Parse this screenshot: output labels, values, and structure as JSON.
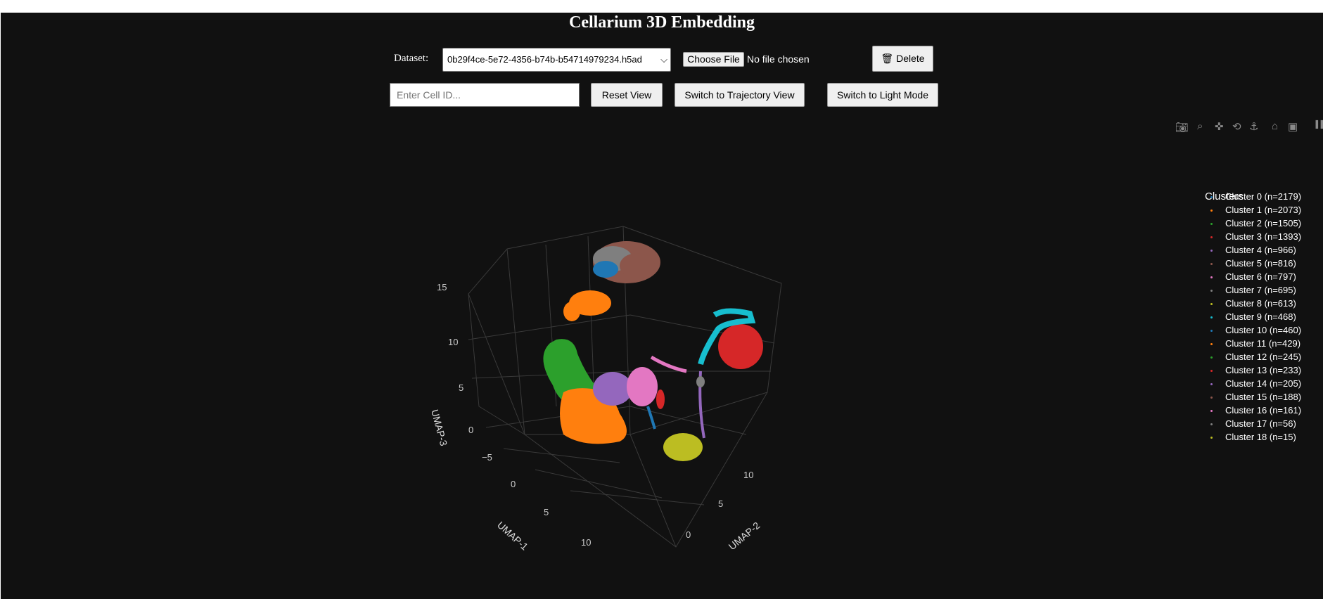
{
  "page_title": "Cellarium 3D Embedding",
  "controls": {
    "dataset_label": "Dataset:",
    "dataset_value": "0b29f4ce-5e72-4356-b74b-b54714979234.h5ad",
    "choose_file_label": "Choose File",
    "no_file_text": "No file chosen",
    "delete_label": "🗑 Delete",
    "cell_id_placeholder": "Enter Cell ID...",
    "reset_view_label": "Reset View",
    "trajectory_label": "Switch to Trajectory View",
    "light_mode_label": "Switch to Light Mode"
  },
  "modebar": [
    "camera-icon",
    "zoom-icon",
    "pan-icon",
    "orbit-icon",
    "turntable-icon",
    "home-icon",
    "video-icon",
    "plotly-logo-icon"
  ],
  "chart_data": {
    "type": "scatter3d",
    "axes": {
      "x": {
        "label": "UMAP-1",
        "ticks": [
          "−5",
          "0",
          "5",
          "10"
        ]
      },
      "y": {
        "label": "UMAP-2",
        "ticks": [
          "0",
          "5",
          "10"
        ]
      },
      "z": {
        "label": "UMAP-3",
        "ticks": [
          "0",
          "5",
          "10",
          "15"
        ]
      }
    },
    "legend_title": "Clusters",
    "legend_position": "right",
    "series": [
      {
        "name": "Cluster 0 (n=2179)",
        "color": "#1f77b4"
      },
      {
        "name": "Cluster 1 (n=2073)",
        "color": "#ff7f0e"
      },
      {
        "name": "Cluster 2 (n=1505)",
        "color": "#2ca02c"
      },
      {
        "name": "Cluster 3 (n=1393)",
        "color": "#d62728"
      },
      {
        "name": "Cluster 4 (n=966)",
        "color": "#9467bd"
      },
      {
        "name": "Cluster 5 (n=816)",
        "color": "#8c564b"
      },
      {
        "name": "Cluster 6 (n=797)",
        "color": "#e377c2"
      },
      {
        "name": "Cluster 7 (n=695)",
        "color": "#7f7f7f"
      },
      {
        "name": "Cluster 8 (n=613)",
        "color": "#bcbd22"
      },
      {
        "name": "Cluster 9 (n=468)",
        "color": "#17becf"
      },
      {
        "name": "Cluster 10 (n=460)",
        "color": "#1f77b4"
      },
      {
        "name": "Cluster 11 (n=429)",
        "color": "#ff7f0e"
      },
      {
        "name": "Cluster 12 (n=245)",
        "color": "#2ca02c"
      },
      {
        "name": "Cluster 13 (n=233)",
        "color": "#d62728"
      },
      {
        "name": "Cluster 14 (n=205)",
        "color": "#9467bd"
      },
      {
        "name": "Cluster 15 (n=188)",
        "color": "#8c564b"
      },
      {
        "name": "Cluster 16 (n=161)",
        "color": "#e377c2"
      },
      {
        "name": "Cluster 17 (n=56)",
        "color": "#7f7f7f"
      },
      {
        "name": "Cluster 18 (n=15)",
        "color": "#bcbd22"
      }
    ]
  }
}
